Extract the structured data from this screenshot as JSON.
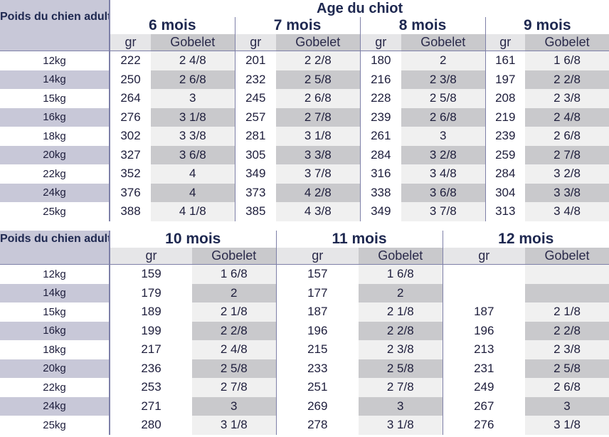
{
  "corner_label": "Poids du chien adulte",
  "age_title": "Age du chiot",
  "sub_headers": {
    "gr": "gr",
    "gobelet": "Gobelet"
  },
  "table1": {
    "months": [
      "6 mois",
      "7 mois",
      "8 mois",
      "9 mois"
    ],
    "rows": [
      {
        "weight": "12kg",
        "vals": [
          [
            "222",
            "2 4/8"
          ],
          [
            "201",
            "2 2/8"
          ],
          [
            "180",
            "2"
          ],
          [
            "161",
            "1 6/8"
          ]
        ]
      },
      {
        "weight": "14kg",
        "vals": [
          [
            "250",
            "2 6/8"
          ],
          [
            "232",
            "2 5/8"
          ],
          [
            "216",
            "2 3/8"
          ],
          [
            "197",
            "2 2/8"
          ]
        ]
      },
      {
        "weight": "15kg",
        "vals": [
          [
            "264",
            "3"
          ],
          [
            "245",
            "2 6/8"
          ],
          [
            "228",
            "2 5/8"
          ],
          [
            "208",
            "2 3/8"
          ]
        ]
      },
      {
        "weight": "16kg",
        "vals": [
          [
            "276",
            "3 1/8"
          ],
          [
            "257",
            "2 7/8"
          ],
          [
            "239",
            "2 6/8"
          ],
          [
            "219",
            "2 4/8"
          ]
        ]
      },
      {
        "weight": "18kg",
        "vals": [
          [
            "302",
            "3 3/8"
          ],
          [
            "281",
            "3 1/8"
          ],
          [
            "261",
            "3"
          ],
          [
            "239",
            "2 6/8"
          ]
        ]
      },
      {
        "weight": "20kg",
        "vals": [
          [
            "327",
            "3 6/8"
          ],
          [
            "305",
            "3 3/8"
          ],
          [
            "284",
            "3 2/8"
          ],
          [
            "259",
            "2 7/8"
          ]
        ]
      },
      {
        "weight": "22kg",
        "vals": [
          [
            "352",
            "4"
          ],
          [
            "349",
            "3 7/8"
          ],
          [
            "316",
            "3 4/8"
          ],
          [
            "284",
            "3 2/8"
          ]
        ]
      },
      {
        "weight": "24kg",
        "vals": [
          [
            "376",
            "4"
          ],
          [
            "373",
            "4 2/8"
          ],
          [
            "338",
            "3 6/8"
          ],
          [
            "304",
            "3 3/8"
          ]
        ]
      },
      {
        "weight": "25kg",
        "vals": [
          [
            "388",
            "4 1/8"
          ],
          [
            "385",
            "4 3/8"
          ],
          [
            "349",
            "3 7/8"
          ],
          [
            "313",
            "3 4/8"
          ]
        ]
      }
    ]
  },
  "table2": {
    "months": [
      "10 mois",
      "11 mois",
      "12 mois"
    ],
    "rows": [
      {
        "weight": "12kg",
        "vals": [
          [
            "159",
            "1 6/8"
          ],
          [
            "157",
            "1 6/8"
          ],
          [
            "",
            ""
          ]
        ]
      },
      {
        "weight": "14kg",
        "vals": [
          [
            "179",
            "2"
          ],
          [
            "177",
            "2"
          ],
          [
            "",
            ""
          ]
        ]
      },
      {
        "weight": "15kg",
        "vals": [
          [
            "189",
            "2 1/8"
          ],
          [
            "187",
            "2 1/8"
          ],
          [
            "187",
            "2 1/8"
          ]
        ]
      },
      {
        "weight": "16kg",
        "vals": [
          [
            "199",
            "2 2/8"
          ],
          [
            "196",
            "2 2/8"
          ],
          [
            "196",
            "2 2/8"
          ]
        ]
      },
      {
        "weight": "18kg",
        "vals": [
          [
            "217",
            "2 4/8"
          ],
          [
            "215",
            "2 3/8"
          ],
          [
            "213",
            "2 3/8"
          ]
        ]
      },
      {
        "weight": "20kg",
        "vals": [
          [
            "236",
            "2 5/8"
          ],
          [
            "233",
            "2 5/8"
          ],
          [
            "231",
            "2 5/8"
          ]
        ]
      },
      {
        "weight": "22kg",
        "vals": [
          [
            "253",
            "2 7/8"
          ],
          [
            "251",
            "2 7/8"
          ],
          [
            "249",
            "2 6/8"
          ]
        ]
      },
      {
        "weight": "24kg",
        "vals": [
          [
            "271",
            "3"
          ],
          [
            "269",
            "3"
          ],
          [
            "267",
            "3"
          ]
        ]
      },
      {
        "weight": "25kg",
        "vals": [
          [
            "280",
            "3 1/8"
          ],
          [
            "278",
            "3 1/8"
          ],
          [
            "276",
            "3 1/8"
          ]
        ]
      }
    ]
  },
  "colors": {
    "accent": "#1e2850",
    "label_bg": "#c8c8d8",
    "gobelet_bg": "#c9c9cc",
    "gr_bg": "#e6e6e8",
    "divider": "#7e80a8"
  }
}
